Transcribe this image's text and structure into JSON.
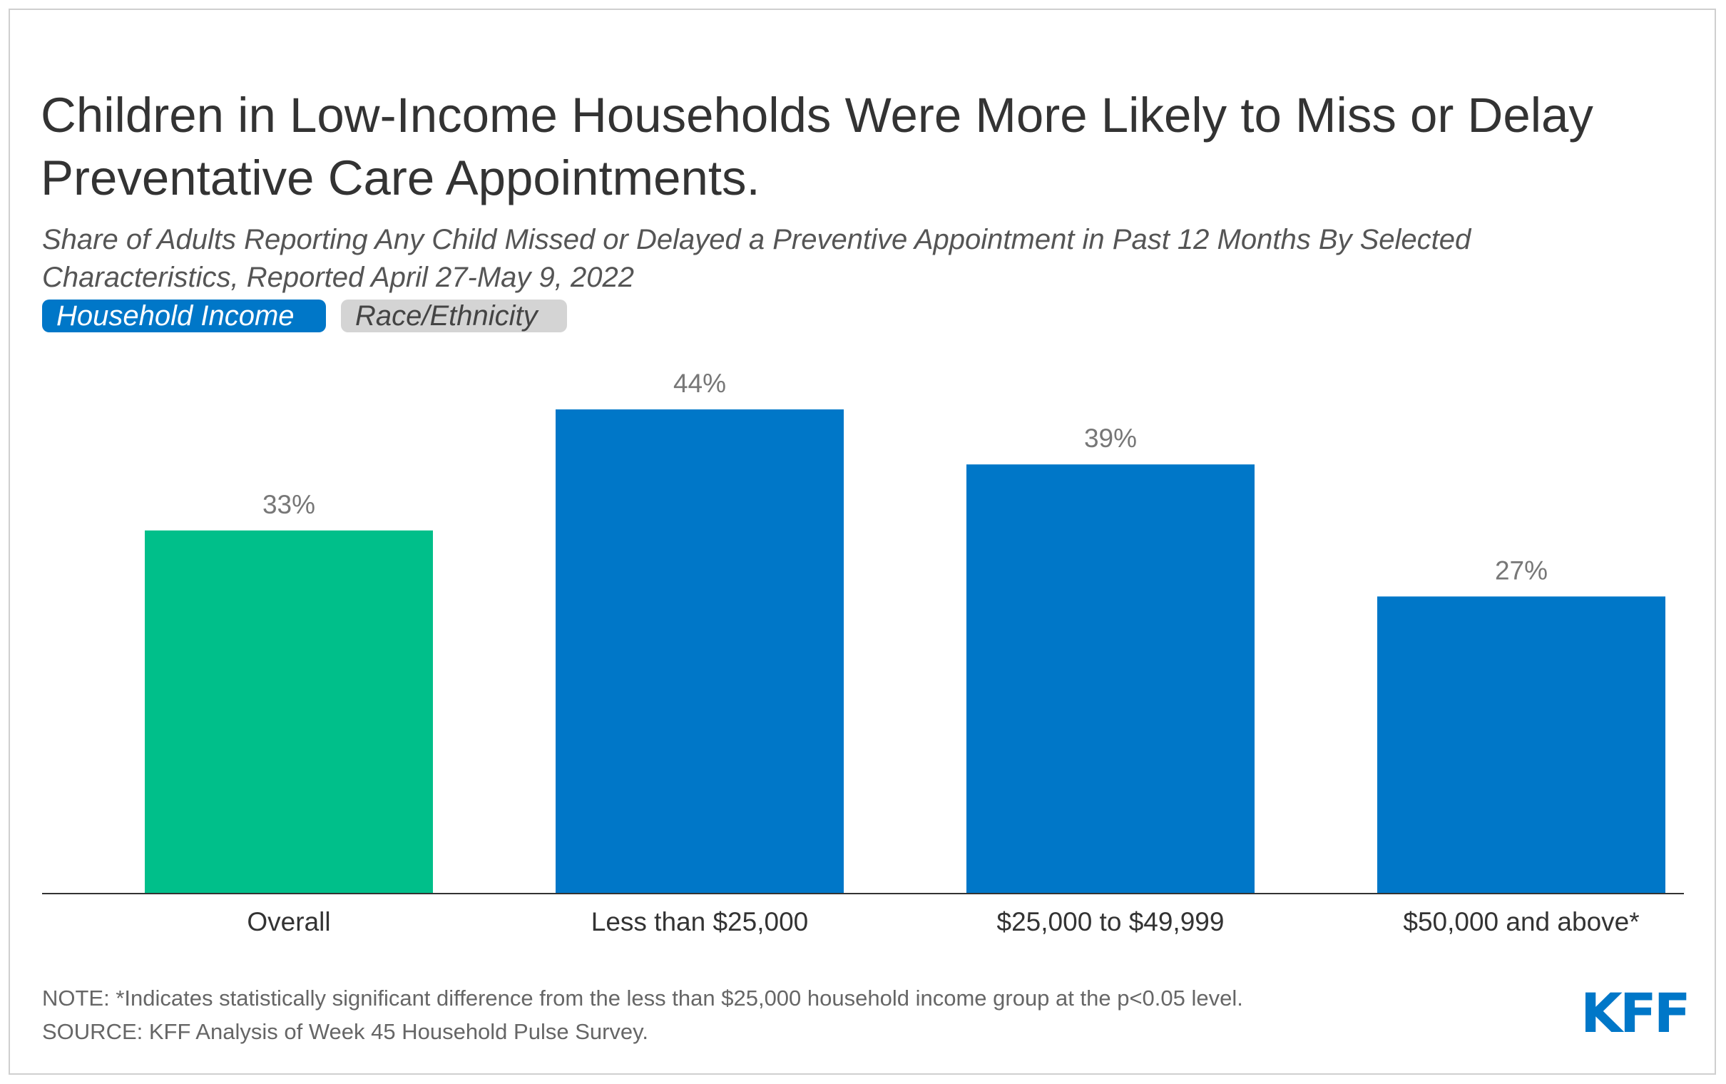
{
  "chart_data": {
    "type": "bar",
    "title": "Children in Low-Income Households Were More Likely to Miss or Delay Preventative Care Appointments.",
    "subtitle": "Share of Adults Reporting Any Child Missed or Delayed a Preventive Appointment in Past 12 Months By Selected Characteristics, Reported April 27-May 9, 2022",
    "toggles": [
      "Household Income",
      "Race/Ethnicity"
    ],
    "categories": [
      "Overall",
      "Less than $25,000",
      "$25,000 to $49,999",
      "$50,000 and above*"
    ],
    "values": [
      33,
      44,
      39,
      27
    ],
    "value_labels": [
      "33%",
      "44%",
      "39%",
      "27%"
    ],
    "colors": [
      "#00bf8a",
      "#0077c8",
      "#0077c8",
      "#0077c8"
    ],
    "note": "NOTE: *Indicates statistically significant difference from the less than $25,000 household income group at the p<0.05 level.",
    "source": "SOURCE: KFF Analysis of Week 45 Household Pulse Survey.",
    "logo": "KFF"
  }
}
